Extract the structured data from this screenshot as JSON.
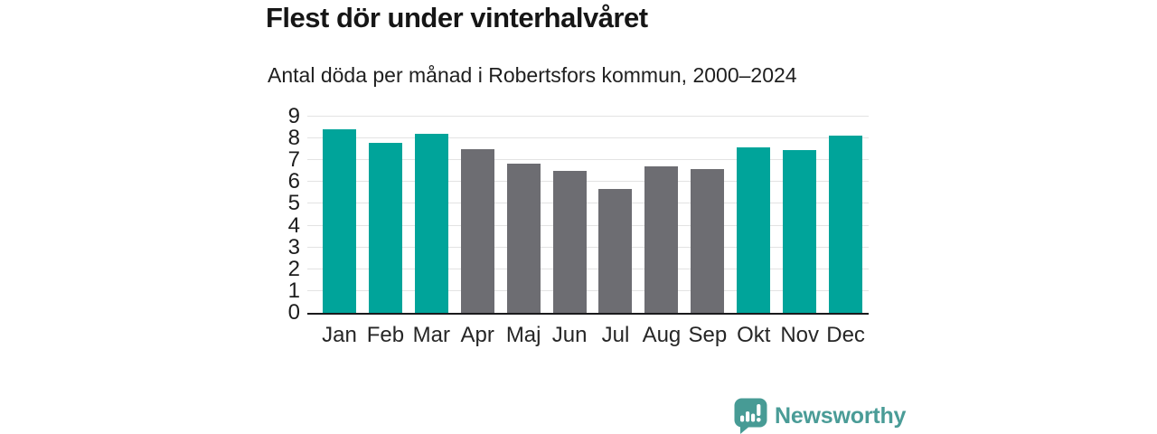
{
  "header": {
    "title": "Flest dör under vinterhalvåret",
    "subtitle": "Antal döda per månad i Robertsfors kommun, 2000–2024"
  },
  "chart_data": {
    "type": "bar",
    "title": "Flest dör under vinterhalvåret",
    "subtitle": "Antal döda per månad i Robertsfors kommun, 2000–2024",
    "categories": [
      "Jan",
      "Feb",
      "Mar",
      "Apr",
      "Maj",
      "Jun",
      "Jul",
      "Aug",
      "Sep",
      "Okt",
      "Nov",
      "Dec"
    ],
    "values": [
      8.4,
      7.8,
      8.2,
      7.5,
      6.85,
      6.5,
      5.7,
      6.7,
      6.6,
      7.6,
      7.45,
      8.15
    ],
    "bar_colors": [
      "#00a49a",
      "#00a49a",
      "#00a49a",
      "#6d6d72",
      "#6d6d72",
      "#6d6d72",
      "#6d6d72",
      "#6d6d72",
      "#6d6d72",
      "#00a49a",
      "#00a49a",
      "#00a49a"
    ],
    "highlight_color": "#00a49a",
    "muted_color": "#6d6d72",
    "xlabel": "",
    "ylabel": "",
    "ylim": [
      0,
      9
    ],
    "yticks": [
      0,
      1,
      2,
      3,
      4,
      5,
      6,
      7,
      8,
      9
    ],
    "grid": "horizontal",
    "legend": "none",
    "gridline_color": "#e3e3e3",
    "axis_line_color": "#1a1a1c"
  },
  "footer": {
    "brand": "Newsworthy",
    "brand_color": "#4a9c97",
    "logo_icon": "bar-chart-speech-bubble-icon"
  }
}
